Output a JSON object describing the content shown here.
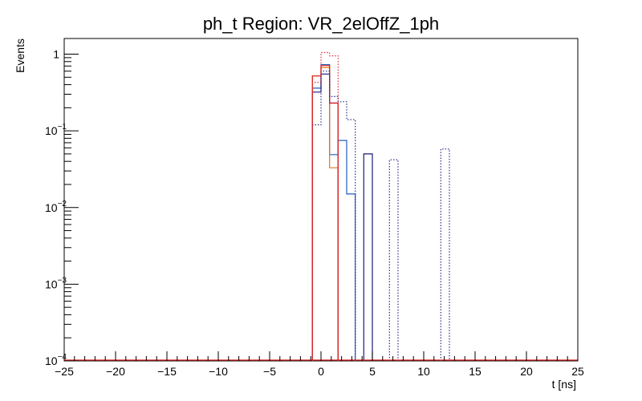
{
  "chart_data": {
    "type": "histogram",
    "title": "ph_t Region: VR_2elOffZ_1ph",
    "xlabel": "t [ns]",
    "ylabel": "Events",
    "xlim": [
      -25,
      25
    ],
    "ylim": [
      0.0001,
      1.6
    ],
    "yscale": "log",
    "bin_width": 0.8333,
    "x_ticks": [
      -25,
      -20,
      -15,
      -10,
      -5,
      0,
      5,
      10,
      15,
      20,
      25
    ],
    "y_ticks": [
      {
        "value": 1,
        "base": "1",
        "exp": ""
      },
      {
        "value": 0.1,
        "base": "10",
        "exp": "−1"
      },
      {
        "value": 0.01,
        "base": "10",
        "exp": "−2"
      },
      {
        "value": 0.001,
        "base": "10",
        "exp": "−3"
      },
      {
        "value": 0.0001,
        "base": "10",
        "exp": "−4"
      }
    ],
    "series": [
      {
        "name": "blue solid",
        "color": "#1f5fbf",
        "style": "solid",
        "bins": [
          [
            -0.833,
            0.36
          ],
          [
            0,
            0.73
          ],
          [
            0.833,
            0.049
          ],
          [
            1.667,
            0.075
          ],
          [
            2.5,
            0.015
          ]
        ]
      },
      {
        "name": "orange solid",
        "color": "#e8731a",
        "style": "solid",
        "bins": [
          [
            -0.833,
            0.52
          ],
          [
            0,
            0.67
          ],
          [
            0.833,
            0.033
          ]
        ]
      },
      {
        "name": "navy solid",
        "color": "#1a1a7a",
        "style": "solid",
        "bins": [
          [
            -0.833,
            0.32
          ],
          [
            0,
            0.55
          ],
          [
            0.833,
            0.23
          ],
          [
            4.167,
            0.05
          ]
        ]
      },
      {
        "name": "red solid",
        "color": "#e02020",
        "style": "solid",
        "bins": [
          [
            -0.833,
            0.52
          ],
          [
            0,
            0.71
          ],
          [
            0.833,
            0.23
          ]
        ]
      },
      {
        "name": "navy dotted",
        "color": "#2a2a8a",
        "style": "dotted",
        "bins": [
          [
            -0.833,
            0.12
          ],
          [
            0,
            0.6
          ],
          [
            0.833,
            0.28
          ],
          [
            1.667,
            0.24
          ],
          [
            2.5,
            0.14
          ],
          [
            6.667,
            0.042
          ],
          [
            11.667,
            0.058
          ]
        ]
      },
      {
        "name": "red dotted",
        "color": "#e03030",
        "style": "dotted",
        "bins": [
          [
            -0.833,
            0.43
          ],
          [
            0,
            1.05
          ],
          [
            0.833,
            0.95
          ]
        ]
      }
    ]
  }
}
